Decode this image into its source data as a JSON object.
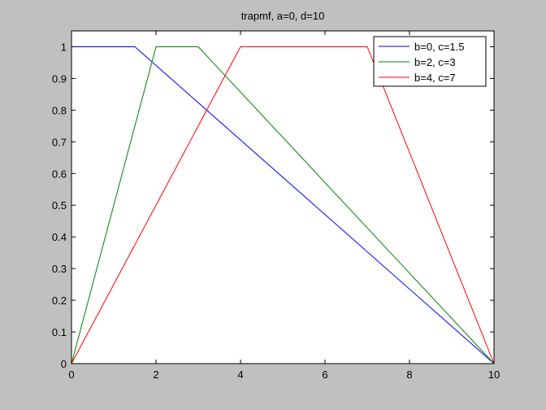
{
  "chart_data": {
    "type": "line",
    "title": "trapmf, a=0, d=10",
    "xlabel": "",
    "ylabel": "",
    "xlim": [
      0,
      10
    ],
    "ylim": [
      0,
      1.05
    ],
    "xticks": [
      0,
      2,
      4,
      6,
      8,
      10
    ],
    "yticks": [
      0,
      0.1,
      0.2,
      0.3,
      0.4,
      0.5,
      0.6,
      0.7,
      0.8,
      0.9,
      1
    ],
    "grid": false,
    "legend_position": "top-right",
    "series": [
      {
        "name": "b=0, c=1.5",
        "color": "#0000ff",
        "x": [
          0,
          0,
          1.5,
          10
        ],
        "y": [
          0,
          1,
          1,
          0
        ]
      },
      {
        "name": "b=2, c=3",
        "color": "#008000",
        "x": [
          0,
          2,
          3,
          10
        ],
        "y": [
          0,
          1,
          1,
          0
        ]
      },
      {
        "name": "b=4, c=7",
        "color": "#ff0000",
        "x": [
          0,
          4,
          7,
          10
        ],
        "y": [
          0,
          1,
          1,
          0
        ]
      }
    ]
  },
  "colors": {
    "figure_background": "#c0c0c0",
    "axes_background": "#ffffff"
  }
}
